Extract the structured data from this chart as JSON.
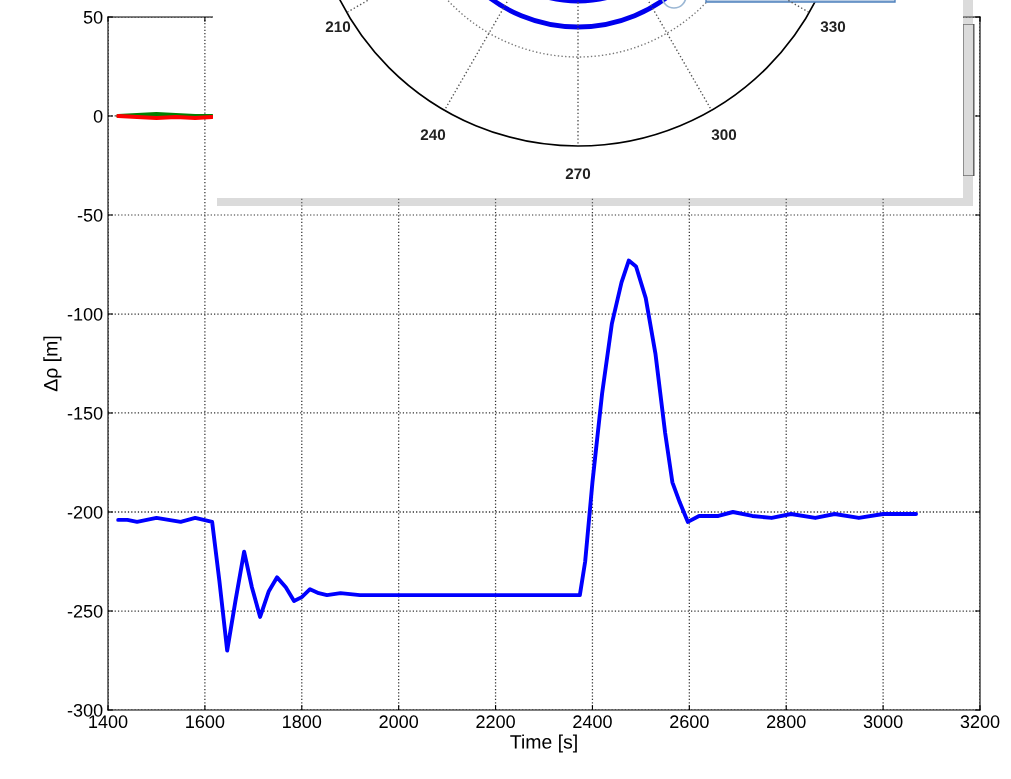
{
  "chart_data": [
    {
      "type": "line",
      "xlabel": "Time [s]",
      "ylabel": "Δρ [m]",
      "xlim": [
        1400,
        3200
      ],
      "xticks": [
        1400,
        1600,
        1800,
        2000,
        2200,
        2400,
        2600,
        2800,
        3000,
        3200
      ],
      "ylim": [
        -300,
        50
      ],
      "yticks": [
        -300,
        -250,
        -200,
        -150,
        -100,
        -50,
        0,
        50
      ],
      "grid": true,
      "series": [
        {
          "color": "#0000ff",
          "x": [
            1421,
            1440,
            1460,
            1500,
            1550,
            1580,
            1615,
            1630,
            1646,
            1663,
            1681,
            1697,
            1714,
            1732,
            1749,
            1767,
            1784,
            1800,
            1817,
            1835,
            1852,
            1880,
            1920,
            1960,
            2000,
            2100,
            2200,
            2300,
            2374,
            2385,
            2400,
            2420,
            2440,
            2460,
            2475,
            2490,
            2510,
            2530,
            2550,
            2565,
            2580,
            2597,
            2620,
            2660,
            2690,
            2730,
            2770,
            2810,
            2860,
            2900,
            2950,
            3000,
            3068
          ],
          "values": [
            -204,
            -204,
            -205,
            -203,
            -205,
            -203,
            -205,
            -235,
            -270,
            -245,
            -220,
            -238,
            -253,
            -240,
            -233,
            -238,
            -245,
            -243,
            -239,
            -241,
            -242,
            -241,
            -242,
            -242,
            -242,
            -242,
            -242,
            -242,
            -242,
            -225,
            -185,
            -140,
            -105,
            -84,
            -73,
            -76,
            -92,
            -120,
            -160,
            -185,
            -195,
            -205,
            -202,
            -202,
            -200,
            -202,
            -203,
            -201,
            -203,
            -201,
            -203,
            -201,
            -201
          ]
        },
        {
          "color": "#008000",
          "x": [
            1421,
            1460,
            1500,
            1540,
            1580,
            1615
          ],
          "values": [
            0,
            0.5,
            1,
            0.5,
            0,
            0
          ]
        },
        {
          "color": "#ff0000",
          "x": [
            1421,
            1460,
            1500,
            1540,
            1580,
            1615
          ],
          "values": [
            0,
            -0.5,
            -1,
            -0.5,
            -1,
            -0.5
          ]
        }
      ]
    },
    {
      "type": "other",
      "annotations": [
        "210",
        "330",
        "240",
        "300",
        "270"
      ]
    }
  ]
}
